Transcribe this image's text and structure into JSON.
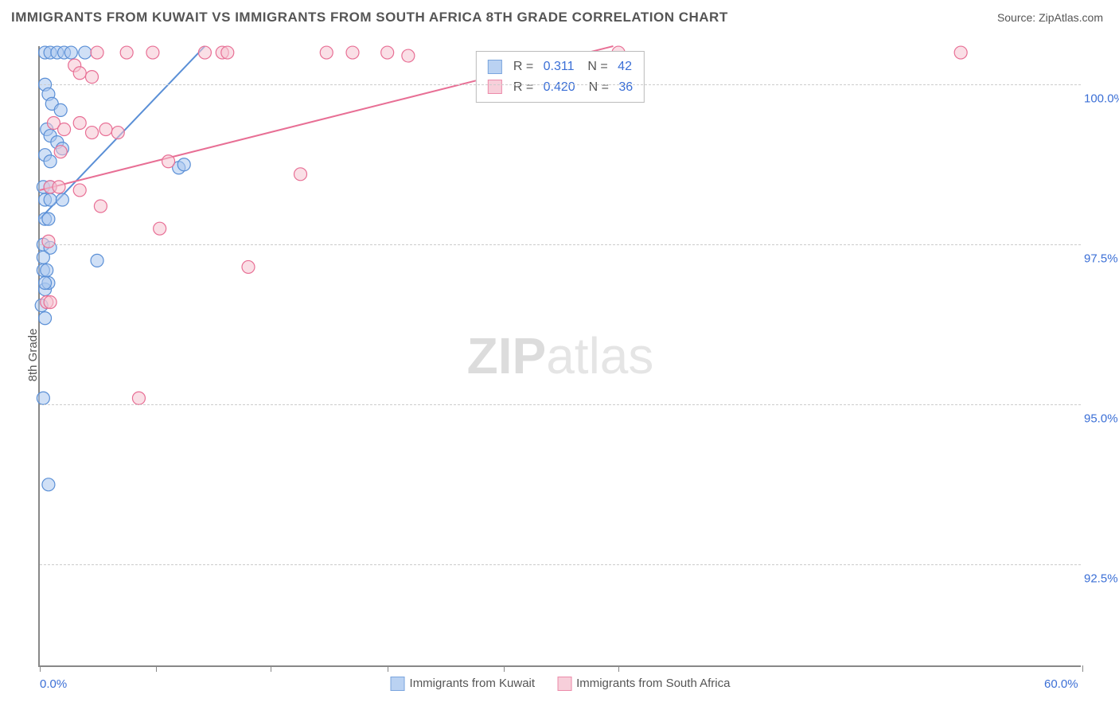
{
  "title": "IMMIGRANTS FROM KUWAIT VS IMMIGRANTS FROM SOUTH AFRICA 8TH GRADE CORRELATION CHART",
  "source_label": "Source:",
  "source_name": "ZipAtlas.com",
  "ylabel": "8th Grade",
  "watermark_bold": "ZIP",
  "watermark_light": "atlas",
  "chart": {
    "type": "scatter",
    "xlim": [
      0,
      60
    ],
    "ylim": [
      90.9,
      100.6
    ],
    "xticks": [
      0,
      6.7,
      13.3,
      20,
      26.7,
      33.3,
      60
    ],
    "xticklabels": {
      "0": "0.0%",
      "60": "60.0%"
    },
    "yticks": [
      92.5,
      95.0,
      97.5,
      100.0
    ],
    "yticklabels": [
      "92.5%",
      "95.0%",
      "97.5%",
      "100.0%"
    ],
    "grid_color": "#cccccc",
    "axis_color": "#888888",
    "background_color": "#ffffff",
    "marker_radius": 8,
    "marker_stroke_width": 1.2,
    "line_width": 2,
    "series": [
      {
        "name": "Immigrants from Kuwait",
        "fill": "#a9c7ef",
        "stroke": "#5a8fd6",
        "fill_opacity": 0.55,
        "R": 0.311,
        "N": 42,
        "trend": {
          "x1": 0,
          "y1": 97.9,
          "x2": 9.5,
          "y2": 100.6
        },
        "points": [
          [
            0.3,
            100.5
          ],
          [
            0.6,
            100.5
          ],
          [
            1.0,
            100.5
          ],
          [
            1.4,
            100.5
          ],
          [
            1.8,
            100.5
          ],
          [
            2.6,
            100.5
          ],
          [
            0.3,
            100.0
          ],
          [
            0.5,
            99.85
          ],
          [
            0.7,
            99.7
          ],
          [
            1.2,
            99.6
          ],
          [
            0.4,
            99.3
          ],
          [
            0.6,
            99.2
          ],
          [
            1.0,
            99.1
          ],
          [
            1.3,
            99.0
          ],
          [
            0.3,
            98.9
          ],
          [
            0.6,
            98.8
          ],
          [
            0.2,
            98.4
          ],
          [
            0.6,
            98.4
          ],
          [
            8.0,
            98.7
          ],
          [
            8.3,
            98.75
          ],
          [
            0.3,
            98.2
          ],
          [
            0.6,
            98.2
          ],
          [
            1.3,
            98.2
          ],
          [
            0.3,
            97.9
          ],
          [
            0.5,
            97.9
          ],
          [
            0.2,
            97.5
          ],
          [
            0.6,
            97.45
          ],
          [
            0.2,
            97.3
          ],
          [
            0.2,
            97.1
          ],
          [
            0.4,
            97.1
          ],
          [
            3.3,
            97.25
          ],
          [
            0.3,
            96.8
          ],
          [
            0.5,
            96.9
          ],
          [
            0.3,
            96.9
          ],
          [
            0.1,
            96.55
          ],
          [
            0.3,
            96.35
          ],
          [
            0.2,
            95.1
          ],
          [
            0.5,
            93.75
          ]
        ]
      },
      {
        "name": "Immigrants from South Africa",
        "fill": "#f6c4d1",
        "stroke": "#e86f95",
        "fill_opacity": 0.55,
        "R": 0.42,
        "N": 36,
        "trend": {
          "x1": 0,
          "y1": 98.35,
          "x2": 33,
          "y2": 100.6
        },
        "points": [
          [
            3.3,
            100.5
          ],
          [
            5.0,
            100.5
          ],
          [
            6.5,
            100.5
          ],
          [
            9.5,
            100.5
          ],
          [
            10.5,
            100.5
          ],
          [
            10.8,
            100.5
          ],
          [
            16.5,
            100.5
          ],
          [
            18.0,
            100.5
          ],
          [
            20.0,
            100.5
          ],
          [
            21.2,
            100.45
          ],
          [
            33.3,
            100.5
          ],
          [
            53.0,
            100.5
          ],
          [
            2.0,
            100.3
          ],
          [
            2.3,
            100.18
          ],
          [
            3.0,
            100.12
          ],
          [
            0.8,
            99.4
          ],
          [
            1.4,
            99.3
          ],
          [
            2.3,
            99.4
          ],
          [
            3.0,
            99.25
          ],
          [
            3.8,
            99.3
          ],
          [
            4.5,
            99.25
          ],
          [
            1.2,
            98.95
          ],
          [
            7.4,
            98.8
          ],
          [
            15.0,
            98.6
          ],
          [
            0.6,
            98.4
          ],
          [
            1.1,
            98.4
          ],
          [
            2.3,
            98.35
          ],
          [
            3.5,
            98.1
          ],
          [
            6.9,
            97.75
          ],
          [
            0.5,
            97.55
          ],
          [
            12.0,
            97.15
          ],
          [
            0.4,
            96.6
          ],
          [
            0.6,
            96.6
          ],
          [
            5.7,
            95.1
          ]
        ]
      }
    ]
  },
  "legend_bottom": {
    "items": [
      "Immigrants from Kuwait",
      "Immigrants from South Africa"
    ]
  },
  "stats_labels": {
    "R": "R",
    "N": "N",
    "eq": "="
  }
}
